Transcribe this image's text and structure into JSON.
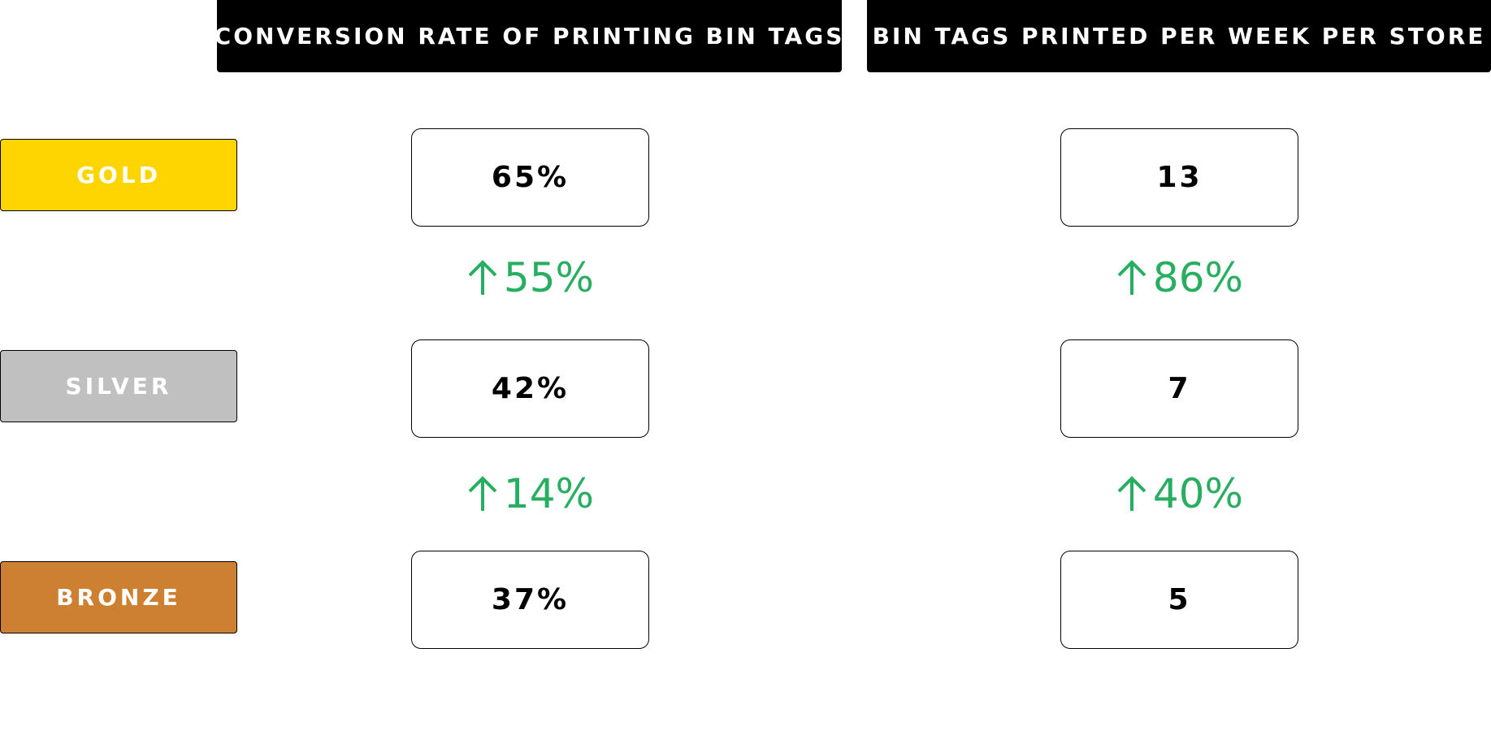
{
  "headers": {
    "conversion": "CONVERSION RATE OF PRINTING BIN TAGS",
    "bintags": "BIN TAGS PRINTED PER WEEK PER STORE"
  },
  "tiers": [
    {
      "label": "GOLD",
      "color": "#ffd500"
    },
    {
      "label": "SILVER",
      "color": "#c0c0c0"
    },
    {
      "label": "BRONZE",
      "color": "#cd7f32"
    }
  ],
  "conversion": {
    "values": [
      "65%",
      "42%",
      "37%"
    ],
    "changes": [
      "55%",
      "14%"
    ]
  },
  "bintags": {
    "values": [
      "13",
      "7",
      "5"
    ],
    "changes": [
      "86%",
      "40%"
    ]
  },
  "change_color": "#27ae60",
  "change_icon": "arrow-up-icon"
}
